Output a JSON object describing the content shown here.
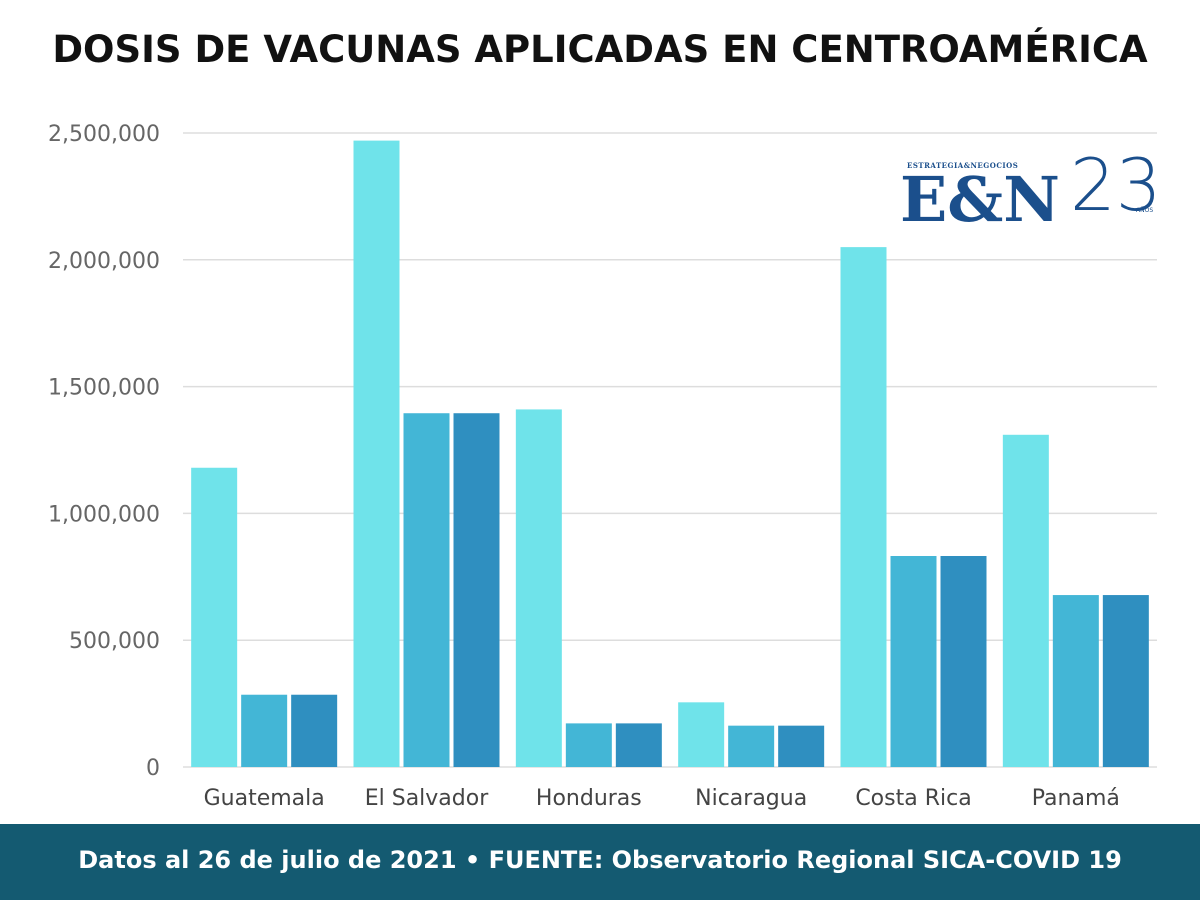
{
  "title": "DOSIS DE VACUNAS APLICADAS EN CENTROAMÉRICA",
  "footer": "Datos al 26 de julio de 2021  • FUENTE: Observatorio Regional SICA-COVID 19",
  "logo": {
    "small_text": "ESTRATEGIA&NEGOCIOS",
    "main_text": "E&N",
    "number_text": "23",
    "anos_text": "AÑOS"
  },
  "colors": {
    "series1": "#6fe3ea",
    "series2": "#43b6d6",
    "series3": "#2f8fc0",
    "grid": "#dddddd",
    "footer_bg": "#145a71",
    "logo": "#1b4f8c"
  },
  "chart_data": {
    "type": "bar",
    "title": "DOSIS DE VACUNAS APLICADAS EN CENTROAMÉRICA",
    "xlabel": "",
    "ylabel": "",
    "categories": [
      "Guatemala",
      "El Salvador",
      "Honduras",
      "Nicaragua",
      "Costa Rica",
      "Panamá"
    ],
    "series": [
      {
        "values": [
          1180000,
          2470000,
          1410000,
          255000,
          2050000,
          1310000
        ]
      },
      {
        "values": [
          285000,
          1395000,
          172000,
          163000,
          832000,
          678000
        ]
      },
      {
        "values": [
          285000,
          1395000,
          172000,
          163000,
          832000,
          678000
        ]
      }
    ],
    "ylim": [
      0,
      2500000
    ],
    "yticks": [
      0,
      500000,
      1000000,
      1500000,
      2000000,
      2500000
    ],
    "ytick_labels": [
      "0",
      "500,000",
      "1,000,000",
      "1,500,000",
      "2,000,000",
      "2,500,000"
    ],
    "grid": true,
    "legend": "none"
  }
}
